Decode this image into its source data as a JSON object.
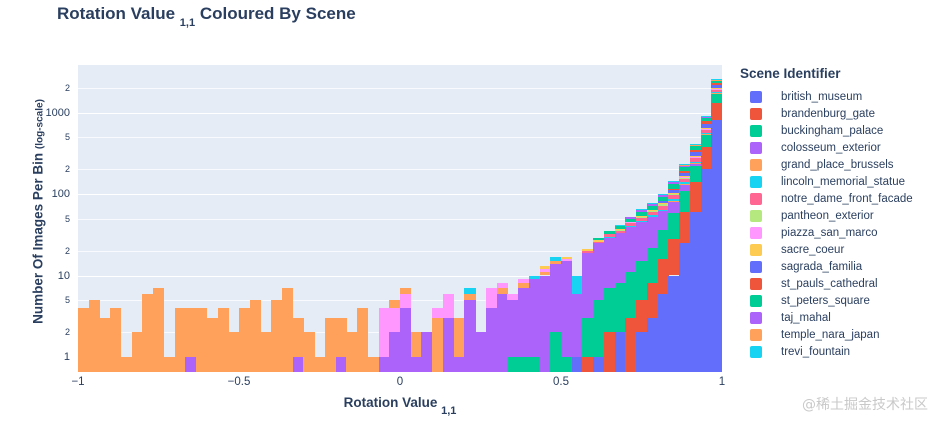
{
  "title": {
    "prefix": "Rotation Value ",
    "sub": "1,1",
    "suffix": " Coloured By Scene"
  },
  "y_axis": {
    "label": "Number Of Images Per Bin ",
    "label_small": "(log-scale)",
    "ticks": [
      {
        "v": 2000,
        "label": "2",
        "minor": true
      },
      {
        "v": 1000,
        "label": "1000",
        "minor": false
      },
      {
        "v": 500,
        "label": "5",
        "minor": true
      },
      {
        "v": 200,
        "label": "2",
        "minor": true
      },
      {
        "v": 100,
        "label": "100",
        "minor": false
      },
      {
        "v": 50,
        "label": "5",
        "minor": true
      },
      {
        "v": 20,
        "label": "2",
        "minor": true
      },
      {
        "v": 10,
        "label": "10",
        "minor": false
      },
      {
        "v": 5,
        "label": "5",
        "minor": true
      },
      {
        "v": 2,
        "label": "2",
        "minor": true
      },
      {
        "v": 1,
        "label": "1",
        "minor": false
      }
    ]
  },
  "x_axis": {
    "label_prefix": "Rotation Value ",
    "label_sub": "1,1",
    "ticks": [
      {
        "v": -1,
        "label": "−1"
      },
      {
        "v": -0.5,
        "label": "−0.5"
      },
      {
        "v": 0,
        "label": "0"
      },
      {
        "v": 0.5,
        "label": "0.5"
      },
      {
        "v": 1,
        "label": "1"
      }
    ]
  },
  "legend": {
    "title": "Scene Identifier",
    "items": [
      {
        "label": "british_museum",
        "color": "#636EFA"
      },
      {
        "label": "brandenburg_gate",
        "color": "#EF553B"
      },
      {
        "label": "buckingham_palace",
        "color": "#00CC96"
      },
      {
        "label": "colosseum_exterior",
        "color": "#AB63FA"
      },
      {
        "label": "grand_place_brussels",
        "color": "#FFA15A"
      },
      {
        "label": "lincoln_memorial_statue",
        "color": "#19D3F3"
      },
      {
        "label": "notre_dame_front_facade",
        "color": "#FF6692"
      },
      {
        "label": "pantheon_exterior",
        "color": "#B6E880"
      },
      {
        "label": "piazza_san_marco",
        "color": "#FF97FF"
      },
      {
        "label": "sacre_coeur",
        "color": "#FECB52"
      },
      {
        "label": "sagrada_familia",
        "color": "#636EFA"
      },
      {
        "label": "st_pauls_cathedral",
        "color": "#EF553B"
      },
      {
        "label": "st_peters_square",
        "color": "#00CC96"
      },
      {
        "label": "taj_mahal",
        "color": "#AB63FA"
      },
      {
        "label": "temple_nara_japan",
        "color": "#FFA15A"
      },
      {
        "label": "trevi_fountain",
        "color": "#19D3F3"
      }
    ]
  },
  "watermark": "@稀土掘金技术社区",
  "chart_data": {
    "type": "bar",
    "mode": "stacked-log-histogram",
    "title": "Rotation Value 1,1 Coloured By Scene",
    "xlabel": "Rotation Value 1,1",
    "ylabel": "Number Of Images Per Bin (log-scale)",
    "xlim": [
      -1,
      1
    ],
    "ylim_log": [
      0.65,
      3400
    ],
    "grid": true,
    "legend_position": "right",
    "bin_start": -1.0,
    "bin_width": 0.033333,
    "series_names": [
      "british_museum",
      "brandenburg_gate",
      "buckingham_palace",
      "colosseum_exterior",
      "grand_place_brussels",
      "lincoln_memorial_statue",
      "notre_dame_front_facade",
      "pantheon_exterior",
      "piazza_san_marco",
      "sacre_coeur",
      "sagrada_familia",
      "st_pauls_cathedral",
      "st_peters_square",
      "taj_mahal",
      "temple_nara_japan",
      "trevi_fountain"
    ],
    "bins": [
      [
        [
          4,
          4
        ]
      ],
      [
        [
          4,
          5
        ]
      ],
      [
        [
          4,
          3
        ]
      ],
      [
        [
          4,
          4
        ]
      ],
      [
        [
          4,
          1
        ]
      ],
      [
        [
          4,
          2
        ]
      ],
      [
        [
          4,
          6
        ]
      ],
      [
        [
          4,
          7
        ]
      ],
      [
        [
          4,
          1
        ]
      ],
      [
        [
          4,
          4
        ]
      ],
      [
        [
          3,
          1
        ],
        [
          4,
          3
        ]
      ],
      [
        [
          4,
          4
        ]
      ],
      [
        [
          4,
          3
        ]
      ],
      [
        [
          4,
          4
        ]
      ],
      [
        [
          4,
          2
        ]
      ],
      [
        [
          4,
          4
        ]
      ],
      [
        [
          4,
          5
        ]
      ],
      [
        [
          4,
          2
        ]
      ],
      [
        [
          4,
          5
        ]
      ],
      [
        [
          4,
          7
        ]
      ],
      [
        [
          3,
          1
        ],
        [
          4,
          2
        ]
      ],
      [
        [
          4,
          2
        ]
      ],
      [
        [
          4,
          1
        ]
      ],
      [
        [
          4,
          3
        ]
      ],
      [
        [
          3,
          1
        ],
        [
          4,
          2
        ]
      ],
      [
        [
          4,
          2
        ]
      ],
      [
        [
          4,
          4
        ]
      ],
      [
        [
          4,
          1
        ]
      ],
      [
        [
          3,
          1
        ],
        [
          8,
          3
        ]
      ],
      [
        [
          3,
          2
        ],
        [
          8,
          2
        ],
        [
          14,
          1
        ]
      ],
      [
        [
          3,
          4
        ],
        [
          8,
          2
        ],
        [
          14,
          1
        ]
      ],
      [
        [
          3,
          1
        ],
        [
          4,
          1
        ]
      ],
      [
        [
          3,
          2
        ]
      ],
      [
        [
          4,
          3
        ],
        [
          8,
          1
        ]
      ],
      [
        [
          3,
          3
        ],
        [
          8,
          3
        ]
      ],
      [
        [
          3,
          1
        ],
        [
          4,
          2
        ]
      ],
      [
        [
          3,
          5
        ],
        [
          4,
          1
        ],
        [
          5,
          1
        ]
      ],
      [
        [
          3,
          2
        ]
      ],
      [
        [
          3,
          4
        ],
        [
          8,
          3
        ]
      ],
      [
        [
          3,
          6
        ],
        [
          4,
          1
        ],
        [
          8,
          1
        ]
      ],
      [
        [
          2,
          1
        ],
        [
          3,
          4
        ],
        [
          8,
          1
        ]
      ],
      [
        [
          2,
          1
        ],
        [
          3,
          6
        ],
        [
          4,
          1
        ],
        [
          8,
          1
        ]
      ],
      [
        [
          2,
          1
        ],
        [
          3,
          8
        ],
        [
          5,
          1
        ]
      ],
      [
        [
          3,
          10
        ],
        [
          4,
          1
        ],
        [
          8,
          1
        ],
        [
          9,
          1
        ]
      ],
      [
        [
          2,
          2
        ],
        [
          3,
          12
        ],
        [
          4,
          1
        ],
        [
          5,
          2
        ]
      ],
      [
        [
          2,
          1
        ],
        [
          3,
          14
        ],
        [
          8,
          1
        ],
        [
          9,
          1
        ]
      ],
      [
        [
          0,
          1
        ],
        [
          3,
          5
        ],
        [
          5,
          4
        ]
      ],
      [
        [
          1,
          1
        ],
        [
          2,
          2
        ],
        [
          3,
          16
        ],
        [
          6,
          1
        ],
        [
          9,
          1
        ]
      ],
      [
        [
          0,
          1
        ],
        [
          2,
          4
        ],
        [
          3,
          20
        ],
        [
          6,
          1
        ],
        [
          9,
          1
        ],
        [
          12,
          2
        ]
      ],
      [
        [
          1,
          2
        ],
        [
          2,
          5
        ],
        [
          3,
          22
        ],
        [
          5,
          1
        ],
        [
          6,
          2
        ],
        [
          12,
          3
        ]
      ],
      [
        [
          0,
          2
        ],
        [
          2,
          6
        ],
        [
          3,
          25
        ],
        [
          6,
          2
        ],
        [
          7,
          1
        ],
        [
          9,
          1
        ],
        [
          12,
          4
        ],
        [
          15,
          1
        ]
      ],
      [
        [
          1,
          3
        ],
        [
          2,
          8
        ],
        [
          3,
          28
        ],
        [
          5,
          2
        ],
        [
          6,
          3
        ],
        [
          8,
          1
        ],
        [
          12,
          5
        ],
        [
          13,
          2
        ]
      ],
      [
        [
          0,
          2
        ],
        [
          1,
          3
        ],
        [
          2,
          10
        ],
        [
          3,
          30
        ],
        [
          5,
          2
        ],
        [
          6,
          4
        ],
        [
          7,
          2
        ],
        [
          9,
          1
        ],
        [
          12,
          6
        ],
        [
          13,
          3
        ],
        [
          15,
          2
        ]
      ],
      [
        [
          0,
          3
        ],
        [
          1,
          5
        ],
        [
          2,
          14
        ],
        [
          3,
          30
        ],
        [
          5,
          3
        ],
        [
          6,
          5
        ],
        [
          7,
          2
        ],
        [
          9,
          2
        ],
        [
          12,
          8
        ],
        [
          13,
          4
        ],
        [
          15,
          2
        ]
      ],
      [
        [
          0,
          6
        ],
        [
          1,
          10
        ],
        [
          2,
          20
        ],
        [
          3,
          25
        ],
        [
          5,
          3
        ],
        [
          6,
          8
        ],
        [
          7,
          3
        ],
        [
          9,
          2
        ],
        [
          10,
          5
        ],
        [
          12,
          10
        ],
        [
          13,
          5
        ],
        [
          15,
          3
        ]
      ],
      [
        [
          0,
          10
        ],
        [
          1,
          18
        ],
        [
          2,
          30
        ],
        [
          3,
          22
        ],
        [
          4,
          2
        ],
        [
          5,
          4
        ],
        [
          6,
          10
        ],
        [
          7,
          4
        ],
        [
          9,
          3
        ],
        [
          10,
          8
        ],
        [
          11,
          5
        ],
        [
          12,
          15
        ],
        [
          13,
          8
        ],
        [
          15,
          4
        ]
      ],
      [
        [
          0,
          25
        ],
        [
          1,
          35
        ],
        [
          2,
          50
        ],
        [
          3,
          20
        ],
        [
          4,
          3
        ],
        [
          5,
          6
        ],
        [
          6,
          15
        ],
        [
          7,
          6
        ],
        [
          8,
          2
        ],
        [
          9,
          5
        ],
        [
          10,
          15
        ],
        [
          11,
          10
        ],
        [
          12,
          25
        ],
        [
          13,
          10
        ],
        [
          14,
          3
        ],
        [
          15,
          6
        ]
      ],
      [
        [
          0,
          60
        ],
        [
          1,
          80
        ],
        [
          2,
          80
        ],
        [
          3,
          18
        ],
        [
          4,
          4
        ],
        [
          5,
          8
        ],
        [
          6,
          25
        ],
        [
          7,
          10
        ],
        [
          8,
          3
        ],
        [
          9,
          8
        ],
        [
          10,
          30
        ],
        [
          11,
          20
        ],
        [
          12,
          40
        ],
        [
          13,
          12
        ],
        [
          14,
          5
        ],
        [
          15,
          8
        ]
      ],
      [
        [
          0,
          200
        ],
        [
          1,
          180
        ],
        [
          2,
          150
        ],
        [
          3,
          15
        ],
        [
          4,
          6
        ],
        [
          5,
          12
        ],
        [
          6,
          50
        ],
        [
          7,
          18
        ],
        [
          8,
          5
        ],
        [
          9,
          15
        ],
        [
          10,
          80
        ],
        [
          11,
          60
        ],
        [
          12,
          80
        ],
        [
          13,
          20
        ],
        [
          14,
          8
        ],
        [
          15,
          15
        ]
      ],
      [
        [
          0,
          800
        ],
        [
          1,
          500
        ],
        [
          2,
          400
        ],
        [
          3,
          30
        ],
        [
          4,
          10
        ],
        [
          5,
          30
        ],
        [
          6,
          120
        ],
        [
          7,
          40
        ],
        [
          8,
          12
        ],
        [
          9,
          40
        ],
        [
          10,
          200
        ],
        [
          11,
          150
        ],
        [
          12,
          150
        ],
        [
          13,
          40
        ],
        [
          14,
          15
        ],
        [
          15,
          40
        ]
      ]
    ]
  }
}
